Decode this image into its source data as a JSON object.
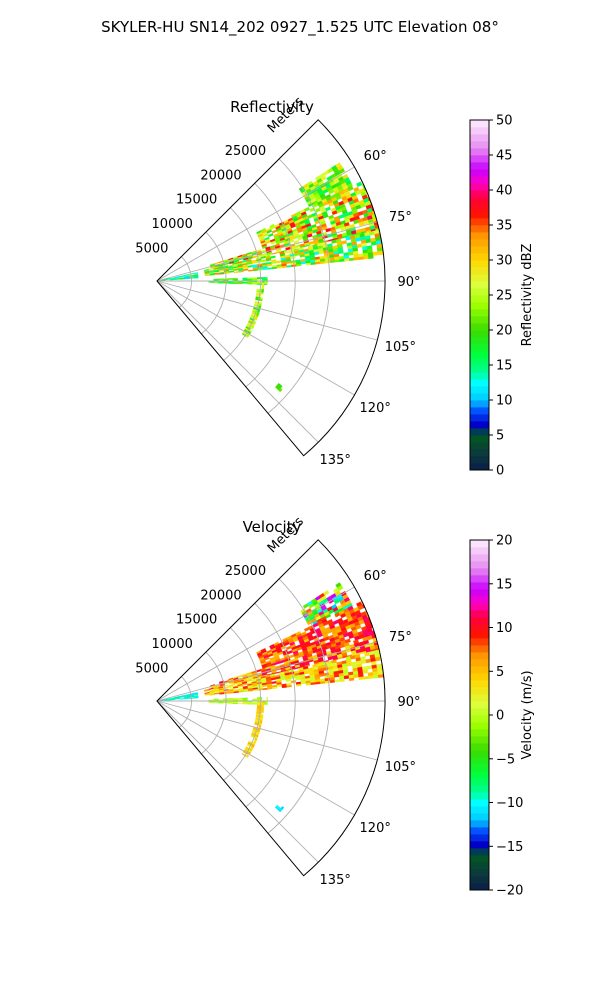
{
  "figure": {
    "title": "SKYLER-HU  SN14_202  0927_1.525 UTC Elevation 08°"
  },
  "colors": {
    "grid": "#b0b0b0",
    "frame": "#000000",
    "background": "#ffffff"
  },
  "chart_data": [
    {
      "type": "heatmap",
      "projection": "polar",
      "title": "Reflectivity",
      "radial_axis_label": "Meters",
      "radial_range": [
        0,
        33000
      ],
      "radial_ticks": [
        5000,
        10000,
        15000,
        20000,
        25000
      ],
      "radial_tick_labels": [
        "5000",
        "10000",
        "15000",
        "20000",
        "25000"
      ],
      "azimuth_range_deg": [
        45,
        140
      ],
      "azimuth_ticks_deg": [
        60,
        75,
        90,
        105,
        120,
        135
      ],
      "azimuth_tick_labels": [
        "60°",
        "75°",
        "90°",
        "105°",
        "120°",
        "135°"
      ],
      "grid": true,
      "colorbar": {
        "label": "Reflectivity dBZ",
        "range": [
          0,
          50
        ],
        "ticks": [
          0,
          5,
          10,
          15,
          20,
          25,
          30,
          35,
          40,
          45,
          50
        ],
        "tick_labels": [
          "0",
          "5",
          "10",
          "15",
          "20",
          "25",
          "30",
          "35",
          "40",
          "45",
          "50"
        ],
        "position": "right"
      },
      "echo_regions": [
        {
          "az_range": [
            57,
            64
          ],
          "r_range": [
            24500,
            31500
          ],
          "value_range": [
            15,
            30
          ]
        },
        {
          "az_range": [
            64,
            73
          ],
          "r_range": [
            16000,
            33000
          ],
          "value_range": [
            15,
            38
          ]
        },
        {
          "az_range": [
            73,
            77
          ],
          "r_range": [
            8000,
            33000
          ],
          "value_range": [
            15,
            40
          ]
        },
        {
          "az_range": [
            77,
            84
          ],
          "r_range": [
            7000,
            33000
          ],
          "value_range": [
            12,
            35
          ]
        },
        {
          "az_range": [
            78,
            86
          ],
          "r_range": [
            500,
            6000
          ],
          "value_range": [
            10,
            20
          ]
        },
        {
          "az_range": [
            88,
            92
          ],
          "r_range": [
            7500,
            16000
          ],
          "value_range": [
            15,
            25
          ]
        },
        {
          "az_range": [
            90,
            122
          ],
          "r_range": [
            14500,
            15500
          ],
          "value_range": [
            18,
            30
          ]
        },
        {
          "az_range": [
            130,
            132
          ],
          "r_range": [
            23000,
            24000
          ],
          "value_range": [
            18,
            22
          ]
        }
      ]
    },
    {
      "type": "heatmap",
      "projection": "polar",
      "title": "Velocity",
      "radial_axis_label": "Meters",
      "radial_range": [
        0,
        33000
      ],
      "radial_ticks": [
        5000,
        10000,
        15000,
        20000,
        25000
      ],
      "radial_tick_labels": [
        "5000",
        "10000",
        "15000",
        "20000",
        "25000"
      ],
      "azimuth_range_deg": [
        45,
        140
      ],
      "azimuth_ticks_deg": [
        60,
        75,
        90,
        105,
        120,
        135
      ],
      "azimuth_tick_labels": [
        "60°",
        "75°",
        "90°",
        "105°",
        "120°",
        "135°"
      ],
      "grid": true,
      "colorbar": {
        "label": "Velocity (m/s)",
        "range": [
          -20,
          20
        ],
        "ticks": [
          -20,
          -15,
          -10,
          -5,
          0,
          5,
          10,
          15,
          20
        ],
        "tick_labels": [
          "−20",
          "−15",
          "−10",
          "−5",
          "0",
          "5",
          "10",
          "15",
          "20"
        ],
        "position": "right"
      },
      "echo_regions": [
        {
          "az_range": [
            57,
            64
          ],
          "r_range": [
            24500,
            31500
          ],
          "value_range": [
            -12,
            15
          ]
        },
        {
          "az_range": [
            64,
            73
          ],
          "r_range": [
            16000,
            33000
          ],
          "value_range": [
            5,
            12
          ]
        },
        {
          "az_range": [
            73,
            77
          ],
          "r_range": [
            8000,
            33000
          ],
          "value_range": [
            2,
            12
          ]
        },
        {
          "az_range": [
            77,
            84
          ],
          "r_range": [
            7000,
            33000
          ],
          "value_range": [
            0,
            10
          ]
        },
        {
          "az_range": [
            78,
            86
          ],
          "r_range": [
            500,
            6000
          ],
          "value_range": [
            -12,
            -8
          ]
        },
        {
          "az_range": [
            88,
            92
          ],
          "r_range": [
            7500,
            16000
          ],
          "value_range": [
            -2,
            2
          ]
        },
        {
          "az_range": [
            90,
            122
          ],
          "r_range": [
            14500,
            15500
          ],
          "value_range": [
            2,
            6
          ]
        },
        {
          "az_range": [
            130,
            132
          ],
          "r_range": [
            23000,
            24000
          ],
          "value_range": [
            -12,
            -10
          ]
        }
      ]
    }
  ]
}
